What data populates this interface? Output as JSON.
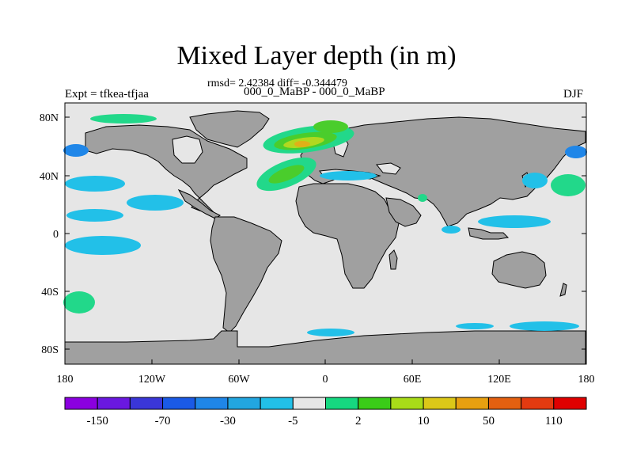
{
  "title": "Mixed Layer depth (in m)",
  "stats_line": "rmsd= 2.42384 diff= -0.344479",
  "comparison_line": "000_0_MaBP - 000_0_MaBP",
  "experiment_label": "Expt = tfkea-tfjaa",
  "season_label": "DJF",
  "map": {
    "projection": "cylindrical equidistant",
    "lon_range": [
      -180,
      180
    ],
    "lat_range": [
      -90,
      90
    ],
    "land_color": "#a0a0a0",
    "ocean_color": "#e6e6e6",
    "x_ticks": [
      "180",
      "120W",
      "60W",
      "0",
      "60E",
      "120E",
      "180"
    ],
    "y_ticks": [
      "80N",
      "40N",
      "0",
      "40S",
      "80S"
    ]
  },
  "colorbar": {
    "colors": [
      "#8b00e0",
      "#6a18e0",
      "#3a36d8",
      "#1a5ae6",
      "#1f86e8",
      "#22a6e0",
      "#22c0e8",
      "#e6e6e6",
      "#16d880",
      "#3acc18",
      "#a8dc18",
      "#dcc818",
      "#e8a010",
      "#e46010",
      "#e43a10",
      "#e00000"
    ],
    "labels": [
      "-150",
      "-70",
      "-30",
      "-5",
      "2",
      "10",
      "50",
      "110"
    ]
  },
  "colors": {
    "positive_light": "#22d88a",
    "positive_mid": "#4acd2c",
    "positive_high": "#b0d820",
    "positive_peak": "#e0b018",
    "negative_light": "#22c0e8",
    "negative_mid": "#1f86e8"
  }
}
